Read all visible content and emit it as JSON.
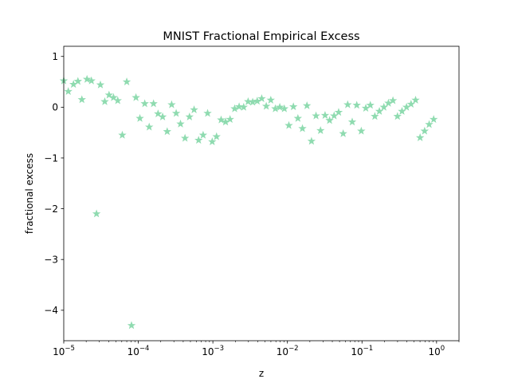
{
  "chart_data": {
    "type": "scatter",
    "title": "MNIST Fractional Empirical Excess",
    "xlabel": "z",
    "ylabel": "fractional excess",
    "xscale": "log",
    "xlim": [
      1e-05,
      2.0
    ],
    "ylim": [
      -4.6,
      1.2
    ],
    "grid": false,
    "marker": "star",
    "color": "#8fdbb0",
    "x_ticks": [
      {
        "value": 1e-05,
        "base": "10",
        "exp": "−5"
      },
      {
        "value": 0.0001,
        "base": "10",
        "exp": "−4"
      },
      {
        "value": 0.001,
        "base": "10",
        "exp": "−3"
      },
      {
        "value": 0.01,
        "base": "10",
        "exp": "−2"
      },
      {
        "value": 0.1,
        "base": "10",
        "exp": "−1"
      },
      {
        "value": 1,
        "base": "10",
        "exp": "0"
      }
    ],
    "y_ticks": [
      {
        "value": 1,
        "label": "1"
      },
      {
        "value": 0,
        "label": "0"
      },
      {
        "value": -1,
        "label": "−1"
      },
      {
        "value": -2,
        "label": "−2"
      },
      {
        "value": -3,
        "label": "−3"
      },
      {
        "value": -4,
        "label": "−4"
      }
    ],
    "points": [
      [
        1e-05,
        0.52
      ],
      [
        1.15e-05,
        0.31
      ],
      [
        1.35e-05,
        0.45
      ],
      [
        1.55e-05,
        0.51
      ],
      [
        1.75e-05,
        0.15
      ],
      [
        2.05e-05,
        0.55
      ],
      [
        2.35e-05,
        0.52
      ],
      [
        2.75e-05,
        -2.1
      ],
      [
        3.1e-05,
        0.44
      ],
      [
        3.55e-05,
        0.11
      ],
      [
        4.05e-05,
        0.24
      ],
      [
        4.65e-05,
        0.19
      ],
      [
        5.3e-05,
        0.13
      ],
      [
        6.1e-05,
        -0.55
      ],
      [
        7e-05,
        0.5
      ],
      [
        8.1e-05,
        -4.3
      ],
      [
        9.3e-05,
        0.19
      ],
      [
        0.000105,
        -0.22
      ],
      [
        0.000122,
        0.07
      ],
      [
        0.00014,
        -0.39
      ],
      [
        0.00016,
        0.07
      ],
      [
        0.000184,
        -0.13
      ],
      [
        0.000212,
        -0.19
      ],
      [
        0.000244,
        -0.48
      ],
      [
        0.00028,
        0.05
      ],
      [
        0.000322,
        -0.12
      ],
      [
        0.000368,
        -0.33
      ],
      [
        0.000423,
        -0.61
      ],
      [
        0.000486,
        -0.19
      ],
      [
        0.00056,
        -0.05
      ],
      [
        0.000644,
        -0.65
      ],
      [
        0.00074,
        -0.55
      ],
      [
        0.00085,
        -0.12
      ],
      [
        0.00098,
        -0.68
      ],
      [
        0.00112,
        -0.58
      ],
      [
        0.00129,
        -0.25
      ],
      [
        0.00148,
        -0.29
      ],
      [
        0.0017,
        -0.24
      ],
      [
        0.00196,
        -0.03
      ],
      [
        0.00225,
        0.01
      ],
      [
        0.00259,
        0.0
      ],
      [
        0.00297,
        0.11
      ],
      [
        0.00342,
        0.1
      ],
      [
        0.00393,
        0.12
      ],
      [
        0.00452,
        0.17
      ],
      [
        0.0052,
        0.02
      ],
      [
        0.00598,
        0.14
      ],
      [
        0.00688,
        -0.03
      ],
      [
        0.0079,
        0.0
      ],
      [
        0.00909,
        -0.03
      ],
      [
        0.01045,
        -0.36
      ],
      [
        0.01202,
        0.01
      ],
      [
        0.01382,
        -0.22
      ],
      [
        0.0159,
        -0.42
      ],
      [
        0.01828,
        0.03
      ],
      [
        0.02102,
        -0.67
      ],
      [
        0.02417,
        -0.17
      ],
      [
        0.0278,
        -0.46
      ],
      [
        0.03197,
        -0.16
      ],
      [
        0.03676,
        -0.26
      ],
      [
        0.04228,
        -0.17
      ],
      [
        0.04862,
        -0.1
      ],
      [
        0.05592,
        -0.52
      ],
      [
        0.0643,
        0.05
      ],
      [
        0.07395,
        -0.29
      ],
      [
        0.08504,
        0.04
      ],
      [
        0.09779,
        -0.47
      ],
      [
        0.11246,
        -0.02
      ],
      [
        0.12933,
        0.04
      ],
      [
        0.14873,
        -0.18
      ],
      [
        0.17104,
        -0.08
      ],
      [
        0.1967,
        0.0
      ],
      [
        0.2262,
        0.08
      ],
      [
        0.26013,
        0.13
      ],
      [
        0.29915,
        -0.18
      ],
      [
        0.34402,
        -0.08
      ],
      [
        0.39563,
        0.0
      ],
      [
        0.45497,
        0.06
      ],
      [
        0.52322,
        0.14
      ],
      [
        0.6017,
        -0.6
      ],
      [
        0.69195,
        -0.47
      ],
      [
        0.79575,
        -0.34
      ],
      [
        0.91511,
        -0.24
      ]
    ]
  }
}
